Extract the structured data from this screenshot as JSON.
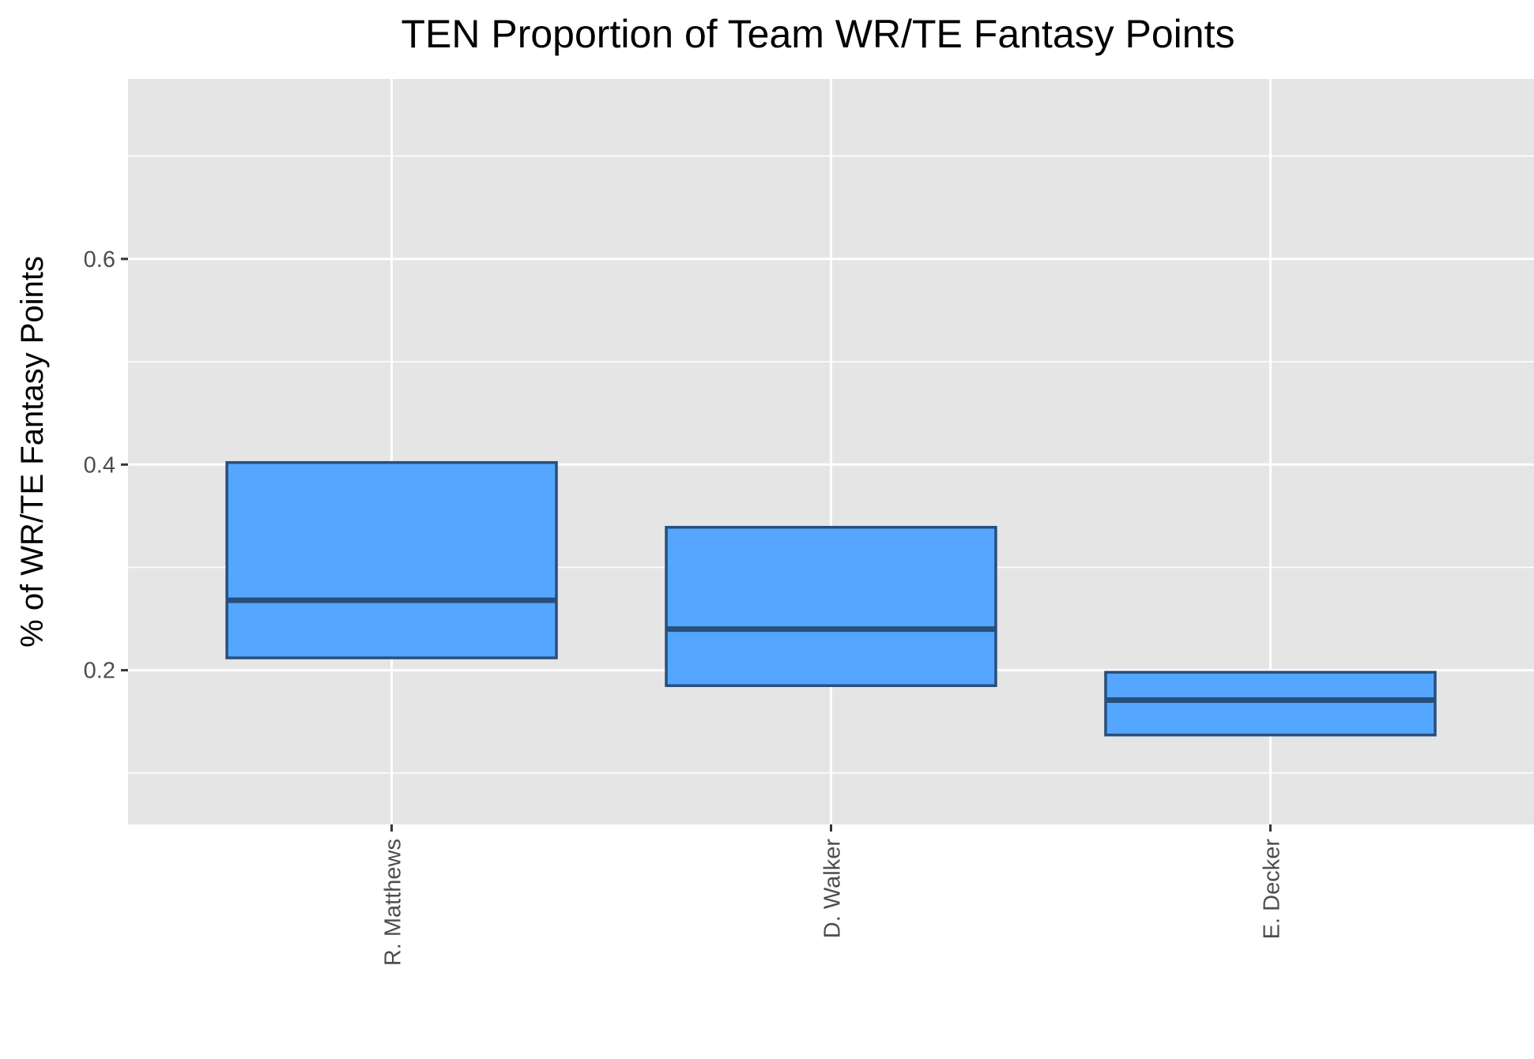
{
  "colors": {
    "panel_background": "#e5e5e5",
    "grid": "#ffffff",
    "box_fill": "#54a6ff",
    "box_outline": "#284e7a",
    "tick_text": "#4d4d4d",
    "tick_mark": "#333333"
  },
  "chart_data": {
    "type": "boxplot",
    "title": "TEN Proportion of Team WR/TE Fantasy Points",
    "xlabel": "",
    "ylabel": "% of WR/TE Fantasy Points",
    "ylim": [
      0.05,
      0.775
    ],
    "yticks": [
      0.2,
      0.4,
      0.6
    ],
    "ytick_labels": [
      "0.2",
      "0.4",
      "0.6"
    ],
    "yminor": [
      0.1,
      0.3,
      0.5,
      0.7
    ],
    "grid": true,
    "legend": "none",
    "categories": [
      "R. Matthews",
      "D. Walker",
      "E. Decker"
    ],
    "boxes": [
      {
        "category": "R. Matthews",
        "q1": 0.212,
        "median": 0.268,
        "q3": 0.402
      },
      {
        "category": "D. Walker",
        "q1": 0.185,
        "median": 0.24,
        "q3": 0.339
      },
      {
        "category": "E. Decker",
        "q1": 0.137,
        "median": 0.171,
        "q3": 0.198
      }
    ]
  }
}
